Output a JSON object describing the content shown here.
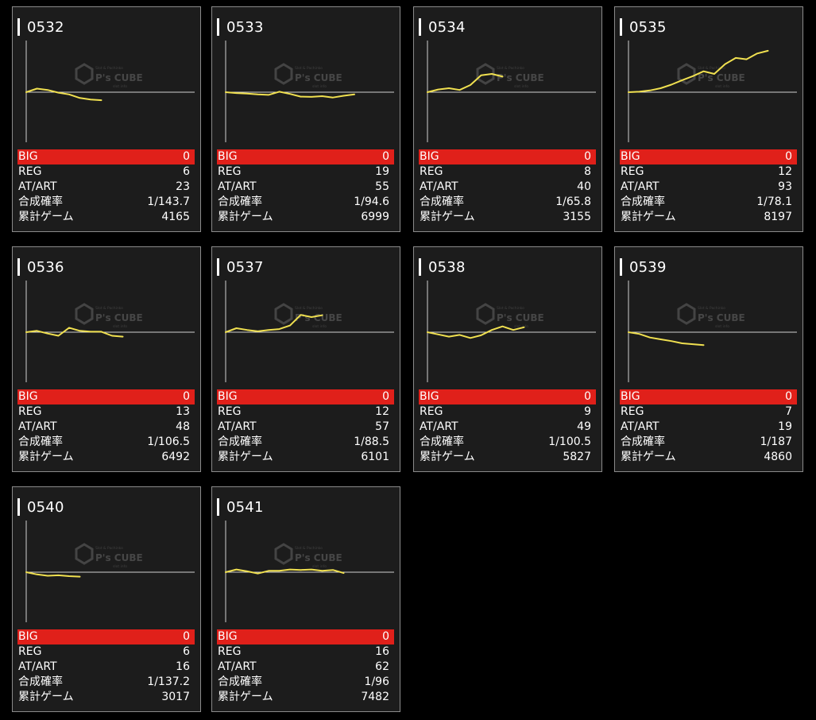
{
  "labels": {
    "big": "BIG",
    "reg": "REG",
    "atart": "AT/ART",
    "prob": "合成確率",
    "games": "累計ゲーム"
  },
  "watermark": {
    "brand": "P's CUBE",
    "tagline": "Slot & Pachinko",
    "sub": "slot info"
  },
  "colors": {
    "line": "#f0e050",
    "big_bar": "#e0201a",
    "card_bg": "#1c1c1c"
  },
  "machines": [
    {
      "id": "0532",
      "big": "0",
      "reg": "6",
      "atart": "23",
      "prob": "1/143.7",
      "games": "4165",
      "trend": [
        0,
        1.6,
        1.0,
        -0.2,
        -1.0,
        -2.6,
        -3.3,
        -3.6
      ]
    },
    {
      "id": "0533",
      "big": "0",
      "reg": "19",
      "atart": "55",
      "prob": "1/94.6",
      "games": "6999",
      "trend": [
        0,
        -0.4,
        -0.6,
        -1.0,
        -1.2,
        0.2,
        -0.8,
        -2.0,
        -2.1,
        -1.8,
        -2.4,
        -1.6,
        -1.0
      ]
    },
    {
      "id": "0534",
      "big": "0",
      "reg": "8",
      "atart": "40",
      "prob": "1/65.8",
      "games": "3155",
      "trend": [
        0,
        1.2,
        1.8,
        1.0,
        3.2,
        7.6,
        8.2,
        7.0
      ]
    },
    {
      "id": "0535",
      "big": "0",
      "reg": "12",
      "atart": "93",
      "prob": "1/78.1",
      "games": "8197",
      "trend": [
        0,
        0.2,
        0.8,
        1.8,
        3.4,
        5.4,
        7.2,
        9.4,
        8.2,
        12.6,
        15.4,
        14.8,
        17.4,
        18.6
      ]
    },
    {
      "id": "0536",
      "big": "0",
      "reg": "13",
      "atart": "48",
      "prob": "1/106.5",
      "games": "6492",
      "trend": [
        0,
        0.6,
        -0.6,
        -1.6,
        2.0,
        0.6,
        0.2,
        0.2,
        -1.6,
        -2.0
      ]
    },
    {
      "id": "0537",
      "big": "0",
      "reg": "12",
      "atart": "57",
      "prob": "1/88.5",
      "games": "6101",
      "trend": [
        0,
        1.8,
        1.0,
        0.4,
        1.0,
        1.4,
        3.0,
        7.8,
        6.8,
        7.6
      ]
    },
    {
      "id": "0538",
      "big": "0",
      "reg": "9",
      "atart": "49",
      "prob": "1/100.5",
      "games": "5827",
      "trend": [
        0,
        -1.0,
        -2.0,
        -1.2,
        -2.6,
        -1.4,
        1.0,
        2.6,
        1.0,
        2.2
      ]
    },
    {
      "id": "0539",
      "big": "0",
      "reg": "7",
      "atart": "19",
      "prob": "1/187",
      "games": "4860",
      "trend": [
        0,
        -0.8,
        -2.4,
        -3.2,
        -4.0,
        -5.0,
        -5.4,
        -5.8
      ]
    },
    {
      "id": "0540",
      "big": "0",
      "reg": "6",
      "atart": "16",
      "prob": "1/137.2",
      "games": "3017",
      "trend": [
        0,
        -1.0,
        -1.6,
        -1.4,
        -1.8,
        -2.0
      ]
    },
    {
      "id": "0541",
      "big": "0",
      "reg": "16",
      "atart": "62",
      "prob": "1/96",
      "games": "7482",
      "trend": [
        0,
        1.2,
        0.4,
        -0.6,
        0.6,
        0.6,
        1.2,
        1.0,
        1.2,
        0.6,
        1.0,
        -0.4
      ]
    }
  ]
}
